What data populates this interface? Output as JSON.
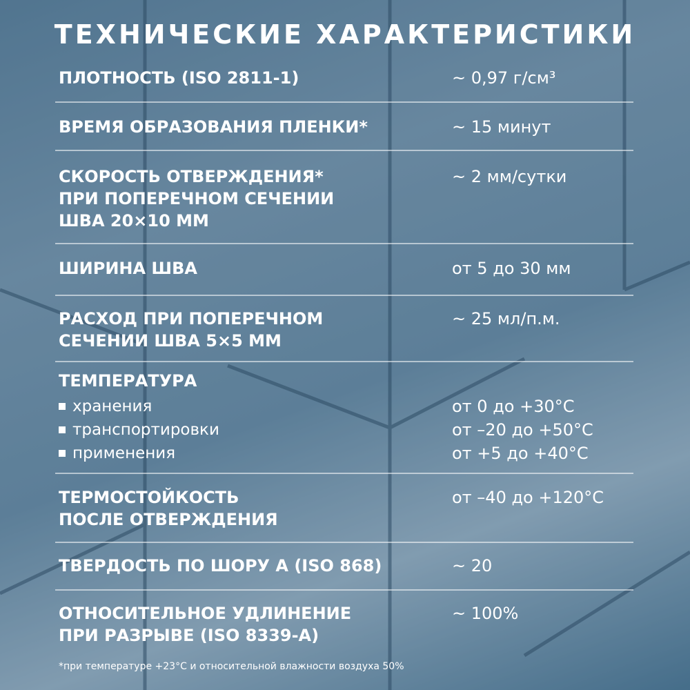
{
  "title": "ТЕХНИЧЕСКИЕ ХАРАКТЕРИСТИКИ",
  "rows": [
    {
      "label": "Плотность (ISO 2811-1)",
      "value": "~ 0,97 г/см³"
    },
    {
      "label": "Время образования пленки*",
      "value": "~ 15 минут"
    },
    {
      "label": "Скорость отверждения*\nпри поперечном сечении\nшва 20×10 мм",
      "value": "~ 2 мм/сутки"
    },
    {
      "label": "Ширина шва",
      "value": "от 5 до 30 мм"
    },
    {
      "label": "Расход при поперечном\nсечении шва 5×5 мм",
      "value": "~ 25 мл/п.м."
    },
    {
      "label": "Термостойкость\nпосле отверждения",
      "value": "от –40 до +120°C"
    },
    {
      "label": "Твердость по Шору А (ISO 868)",
      "value": "~ 20"
    },
    {
      "label": "Относительное удлинение\nпри разрыве (ISO 8339-A)",
      "value": "~ 100%"
    }
  ],
  "temperature": {
    "label": "Температура",
    "items": [
      {
        "label": "хранения",
        "value": "от 0 до +30°C"
      },
      {
        "label": "транспортировки",
        "value": "от –20 до +50°C"
      },
      {
        "label": "применения",
        "value": "от +5 до +40°C"
      }
    ]
  },
  "footnote": "*при температуре +23°C и относительной влажности воздуха 50%"
}
